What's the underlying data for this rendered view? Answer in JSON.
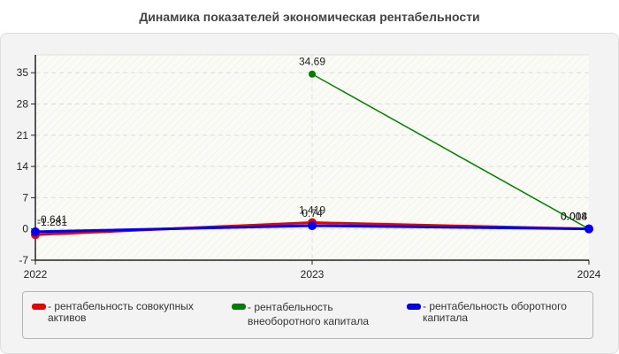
{
  "title": "Динамика показателей экономическая рентабельности",
  "chart_data": {
    "type": "line",
    "title": "Динамика показателей экономическая рентабельности",
    "xlabel": "",
    "ylabel": "",
    "categories": [
      "2022",
      "2023",
      "2024"
    ],
    "ylim": [
      -7,
      39
    ],
    "yticks": [
      -7,
      0,
      7,
      14,
      21,
      28,
      35
    ],
    "grid": true,
    "legend_position": "bottom",
    "series": [
      {
        "name": "рентабельность совокупных активов",
        "color": "#ee0000",
        "values": [
          -1.281,
          1.419,
          0.004
        ],
        "labels": [
          "-1.281",
          "1.419",
          "0.004"
        ]
      },
      {
        "name": "рентабельность внеоборотного капитала",
        "color": "#008000",
        "values": [
          null,
          34.69,
          0.008
        ],
        "labels": [
          "",
          "34.69",
          "0.008"
        ]
      },
      {
        "name": "рентабельность оборотного капитала",
        "color": "#0000ee",
        "values": [
          -0.641,
          0.74,
          0.014
        ],
        "labels": [
          "-0.641",
          "0.74",
          "0.014"
        ]
      }
    ]
  },
  "legend": {
    "items": [
      {
        "label": "- рентабельность совокупных\nактивов",
        "color": "#ee0000"
      },
      {
        "label": "- рентабельность\nвнеоборотного капитала",
        "color": "#008000"
      },
      {
        "label": "- рентабельность оборотного\nкапитала",
        "color": "#0000ee"
      }
    ]
  }
}
